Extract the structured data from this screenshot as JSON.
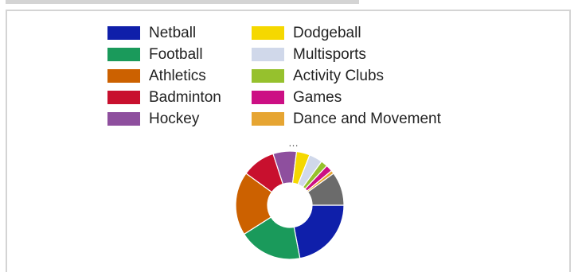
{
  "chart_data": {
    "type": "pie",
    "donut": true,
    "legend_position": "top",
    "categories": [
      "Netball",
      "Football",
      "Athletics",
      "Badminton",
      "Hockey",
      "Dodgeball",
      "Multisports",
      "Activity Clubs",
      "Games",
      "Dance and Movement",
      "…"
    ],
    "values": [
      22,
      19,
      19,
      10,
      7,
      4,
      4,
      2,
      2,
      1,
      10
    ],
    "colors": [
      "#0f1faa",
      "#1a9a5b",
      "#cc6100",
      "#c8102e",
      "#8e4f9e",
      "#f5d800",
      "#d0d8ea",
      "#96c12d",
      "#cc0f84",
      "#e6a532",
      "#6b6b6b"
    ],
    "legend_ellipsis": "…"
  }
}
